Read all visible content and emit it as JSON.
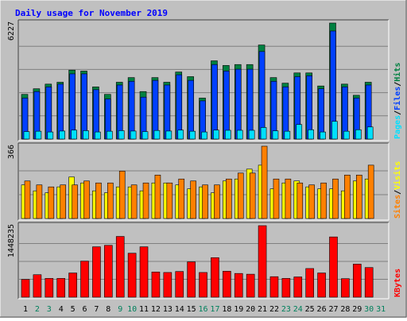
{
  "title": "Daily usage for November 2019",
  "colors": {
    "background": "#c0c0c0",
    "plot_background": "#c0c0c0",
    "title_color": "#0000ff",
    "hits": "#008040",
    "files": "#0040ff",
    "pages": "#00e0ff",
    "visits": "#ffff00",
    "sites": "#ff8000",
    "kbytes": "#ff0000",
    "weekday_label": "#000000",
    "weekend_label": "#00805c"
  },
  "chart_data": [
    {
      "type": "bar",
      "name": "hits-files-pages",
      "ymax_label": "6227",
      "ylim": [
        0,
        6227
      ],
      "side_labels": [
        "Pages",
        "Files",
        "Hits"
      ],
      "categories": [
        "1",
        "2",
        "3",
        "4",
        "5",
        "6",
        "7",
        "8",
        "9",
        "10",
        "11",
        "12",
        "13",
        "14",
        "15",
        "16",
        "17",
        "18",
        "19",
        "20",
        "21",
        "22",
        "23",
        "24",
        "25",
        "26",
        "27",
        "28",
        "29",
        "30",
        "31"
      ],
      "series": [
        {
          "name": "Hits",
          "values": [
            2400,
            2700,
            2950,
            3050,
            3700,
            3650,
            2800,
            2400,
            3050,
            3300,
            2550,
            3300,
            3050,
            3600,
            3350,
            2200,
            4200,
            3950,
            4000,
            4000,
            5050,
            3300,
            3000,
            3550,
            3550,
            2850,
            6227,
            2950,
            2350,
            3050,
            0
          ]
        },
        {
          "name": "Files",
          "values": [
            2200,
            2550,
            2800,
            2950,
            3500,
            3500,
            2650,
            2150,
            2900,
            3100,
            2250,
            3150,
            2900,
            3450,
            3150,
            2050,
            4000,
            3650,
            3750,
            3750,
            4700,
            3100,
            2800,
            3350,
            3400,
            2700,
            5800,
            2800,
            2200,
            2900,
            0
          ]
        },
        {
          "name": "Pages",
          "values": [
            400,
            420,
            380,
            430,
            480,
            450,
            380,
            420,
            450,
            430,
            400,
            460,
            430,
            480,
            420,
            380,
            480,
            470,
            470,
            470,
            620,
            440,
            420,
            780,
            500,
            380,
            950,
            420,
            500,
            650,
            0
          ]
        }
      ]
    },
    {
      "type": "bar",
      "name": "visits-sites",
      "ymax_label": "366",
      "ylim": [
        0,
        366
      ],
      "side_labels": [
        "Sites",
        "Visits"
      ],
      "categories": [
        "1",
        "2",
        "3",
        "4",
        "5",
        "6",
        "7",
        "8",
        "9",
        "10",
        "11",
        "12",
        "13",
        "14",
        "15",
        "16",
        "17",
        "18",
        "19",
        "20",
        "21",
        "22",
        "23",
        "24",
        "25",
        "26",
        "27",
        "28",
        "29",
        "30",
        "31"
      ],
      "series": [
        {
          "name": "Visits",
          "values": [
            170,
            140,
            130,
            160,
            210,
            180,
            140,
            130,
            160,
            160,
            140,
            180,
            180,
            170,
            150,
            160,
            130,
            190,
            200,
            250,
            270,
            150,
            180,
            190,
            160,
            150,
            150,
            140,
            190,
            200,
            0
          ]
        },
        {
          "name": "Sites",
          "values": [
            190,
            170,
            160,
            170,
            170,
            190,
            180,
            180,
            240,
            170,
            180,
            220,
            180,
            200,
            190,
            170,
            170,
            200,
            230,
            230,
            366,
            200,
            200,
            180,
            170,
            180,
            200,
            220,
            220,
            270,
            0
          ]
        }
      ]
    },
    {
      "type": "bar",
      "name": "kbytes",
      "ymax_label": "1448235",
      "ylim": [
        0,
        1448235
      ],
      "side_labels": [
        "KBytes"
      ],
      "categories": [
        "1",
        "2",
        "3",
        "4",
        "5",
        "6",
        "7",
        "8",
        "9",
        "10",
        "11",
        "12",
        "13",
        "14",
        "15",
        "16",
        "17",
        "18",
        "19",
        "20",
        "21",
        "22",
        "23",
        "24",
        "25",
        "26",
        "27",
        "28",
        "29",
        "30",
        "31"
      ],
      "series": [
        {
          "name": "KBytes",
          "values": [
            360000,
            455000,
            380000,
            380000,
            490000,
            730000,
            1020000,
            1050000,
            1230000,
            890000,
            1020000,
            510000,
            500000,
            520000,
            715000,
            500000,
            800000,
            525000,
            480000,
            465000,
            1448235,
            415000,
            380000,
            410000,
            580000,
            490000,
            1220000,
            375000,
            670000,
            600000,
            0
          ]
        }
      ]
    }
  ]
}
